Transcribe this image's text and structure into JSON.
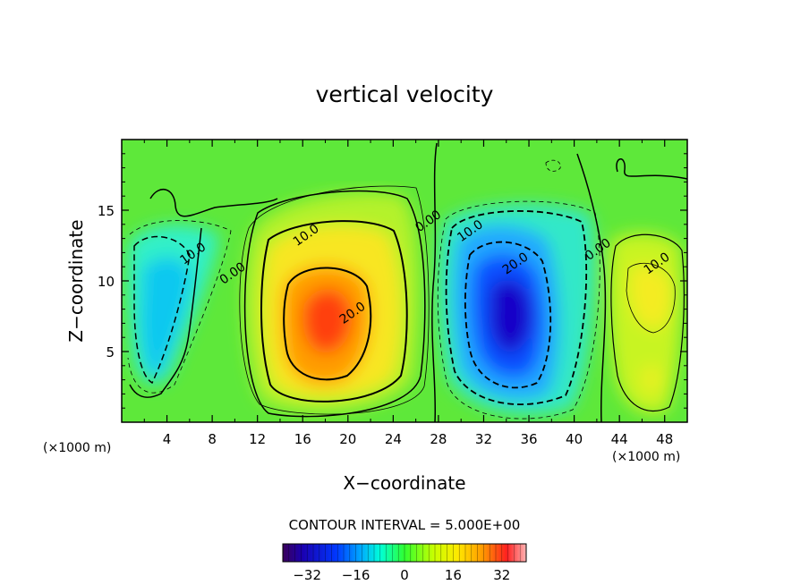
{
  "chart_data": {
    "type": "heatmap",
    "title": "vertical velocity",
    "xlabel": "X−coordinate",
    "ylabel": "Z−coordinate",
    "x_unit_left": "(×1000 m)",
    "x_unit_right": "(×1000 m)",
    "xlim": [
      0,
      50
    ],
    "ylim": [
      0,
      20
    ],
    "x_ticks": [
      "4",
      "8",
      "12",
      "16",
      "20",
      "24",
      "28",
      "32",
      "36",
      "40",
      "44",
      "48"
    ],
    "y_ticks": [
      "5",
      "10",
      "15"
    ],
    "contour_interval_text": "CONTOUR INTERVAL = 5.000E+00",
    "colorbar": {
      "min": -40,
      "max": 40,
      "ticks": [
        "−32",
        "−16",
        "0",
        "16",
        "32"
      ]
    },
    "contour_labels": [
      {
        "text": "10.0",
        "x": 16.5,
        "y": 13.0
      },
      {
        "text": "20.0",
        "x": 20.6,
        "y": 7.5
      },
      {
        "text": "0.00",
        "x": 10.0,
        "y": 10.3
      },
      {
        "text": "10.0",
        "x": 6.5,
        "y": 11.7
      },
      {
        "text": "0.00",
        "x": 27.3,
        "y": 14.0
      },
      {
        "text": "10.0",
        "x": 31.0,
        "y": 13.3
      },
      {
        "text": "20.0",
        "x": 35.0,
        "y": 11.0
      },
      {
        "text": "0.00",
        "x": 42.3,
        "y": 12.0
      },
      {
        "text": "10.0",
        "x": 47.5,
        "y": 11.0
      }
    ],
    "cells": [
      {
        "x": 4,
        "z": 8,
        "value": -14
      },
      {
        "x": 18,
        "z": 7,
        "value": 28
      },
      {
        "x": 34,
        "z": 7,
        "value": -36
      },
      {
        "x": 47,
        "z": 9,
        "value": 16
      },
      {
        "x": 46,
        "z": 3,
        "value": 10
      }
    ]
  }
}
